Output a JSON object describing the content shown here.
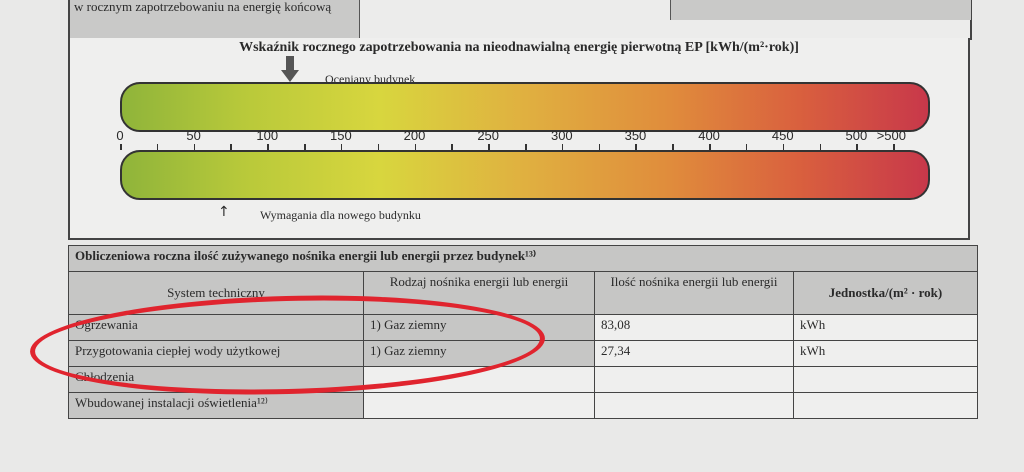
{
  "top_section": {
    "cell_text": "w rocznym zapotrzebowaniu na energię końcową"
  },
  "ep_scale": {
    "title": "Wskaźnik rocznego zapotrzebowania na nieodnawialną energię pierwotną EP [kWh/(m²·rok)]",
    "assessed_label": "Oceniany budynek",
    "assessed_value": 120,
    "requirement_label": "Wymagania dla nowego budynku",
    "requirement_value": 70,
    "ticks": [
      "0",
      "50",
      "100",
      "150",
      "200",
      "250",
      "300",
      "350",
      "400",
      "450",
      "500"
    ],
    "overflow_label": ">500",
    "colors": {
      "low": "#8fb43a",
      "mid": "#d8d63e",
      "high": "#c8384a"
    }
  },
  "energy_table": {
    "title": "Obliczeniowa roczna ilość zużywanego nośnika energii lub energii przez budynek¹³⁾",
    "headers": [
      "System techniczny",
      "Rodzaj nośnika energii lub energii",
      "Ilość nośnika energii lub energii",
      "Jednostka/(m² · rok)"
    ],
    "rows": [
      [
        "Ogrzewania",
        "1) Gaz ziemny",
        "83,08",
        "kWh"
      ],
      [
        "Przygotowania ciepłej wody użytkowej",
        "1) Gaz ziemny",
        "27,34",
        "kWh"
      ],
      [
        "Chłodzenia",
        "",
        "",
        ""
      ],
      [
        "Wbudowanej instalacji oświetlenia¹²⁾",
        "",
        "",
        ""
      ]
    ]
  },
  "annotation_color": "#e0242e"
}
